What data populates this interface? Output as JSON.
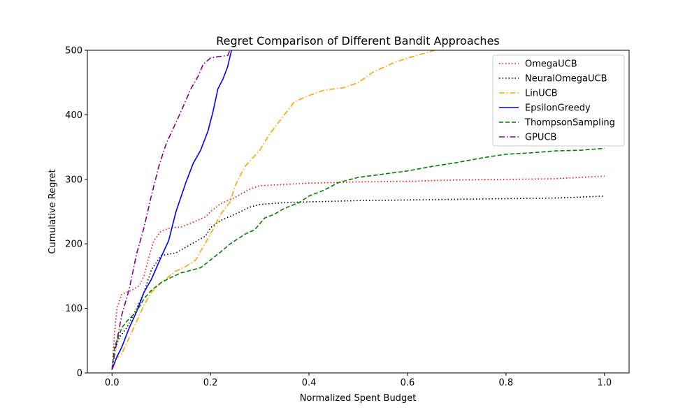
{
  "chart_data": {
    "type": "line",
    "title": "Regret Comparison of Different Bandit Approaches",
    "xlabel": "Normalized Spent Budget",
    "ylabel": "Cumulative Regret",
    "xlim": [
      -0.05,
      1.05
    ],
    "ylim": [
      0,
      500
    ],
    "xticks": [
      0.0,
      0.2,
      0.4,
      0.6,
      0.8,
      1.0
    ],
    "xtick_labels": [
      "0.0",
      "0.2",
      "0.4",
      "0.6",
      "0.8",
      "1.0"
    ],
    "yticks": [
      0,
      100,
      200,
      300,
      400,
      500
    ],
    "ytick_labels": [
      "0",
      "100",
      "200",
      "300",
      "400",
      "500"
    ],
    "grid": false,
    "legend_position": "top-right",
    "series": [
      {
        "name": "OmegaUCB",
        "color": "#ff0000",
        "dash": "dotted",
        "points": [
          [
            0,
            5
          ],
          [
            0.005,
            60
          ],
          [
            0.01,
            100
          ],
          [
            0.02,
            122
          ],
          [
            0.04,
            128
          ],
          [
            0.055,
            135
          ],
          [
            0.065,
            150
          ],
          [
            0.075,
            180
          ],
          [
            0.085,
            205
          ],
          [
            0.1,
            220
          ],
          [
            0.12,
            225
          ],
          [
            0.14,
            226
          ],
          [
            0.16,
            232
          ],
          [
            0.19,
            242
          ],
          [
            0.2,
            250
          ],
          [
            0.22,
            262
          ],
          [
            0.25,
            272
          ],
          [
            0.28,
            285
          ],
          [
            0.3,
            290
          ],
          [
            0.35,
            292
          ],
          [
            0.4,
            294
          ],
          [
            0.5,
            296
          ],
          [
            0.6,
            297
          ],
          [
            0.7,
            299
          ],
          [
            0.8,
            300
          ],
          [
            0.9,
            301
          ],
          [
            1.0,
            305
          ]
        ]
      },
      {
        "name": "NeuralOmegaUCB",
        "color": "#000000",
        "dash": "dotted",
        "points": [
          [
            0,
            5
          ],
          [
            0.005,
            35
          ],
          [
            0.015,
            55
          ],
          [
            0.03,
            70
          ],
          [
            0.05,
            100
          ],
          [
            0.065,
            125
          ],
          [
            0.08,
            160
          ],
          [
            0.1,
            182
          ],
          [
            0.13,
            186
          ],
          [
            0.15,
            195
          ],
          [
            0.19,
            212
          ],
          [
            0.2,
            225
          ],
          [
            0.22,
            236
          ],
          [
            0.25,
            246
          ],
          [
            0.28,
            257
          ],
          [
            0.3,
            261
          ],
          [
            0.35,
            264
          ],
          [
            0.4,
            265
          ],
          [
            0.5,
            267
          ],
          [
            0.6,
            268
          ],
          [
            0.7,
            269
          ],
          [
            0.8,
            270
          ],
          [
            0.9,
            271
          ],
          [
            1.0,
            274
          ]
        ]
      },
      {
        "name": "LinUCB",
        "color": "#ffa500",
        "dash": "dashdot",
        "points": [
          [
            0,
            5
          ],
          [
            0.005,
            20
          ],
          [
            0.02,
            30
          ],
          [
            0.035,
            55
          ],
          [
            0.05,
            80
          ],
          [
            0.065,
            105
          ],
          [
            0.08,
            125
          ],
          [
            0.1,
            140
          ],
          [
            0.13,
            158
          ],
          [
            0.15,
            165
          ],
          [
            0.17,
            175
          ],
          [
            0.2,
            215
          ],
          [
            0.22,
            245
          ],
          [
            0.24,
            265
          ],
          [
            0.25,
            290
          ],
          [
            0.27,
            320
          ],
          [
            0.3,
            345
          ],
          [
            0.32,
            370
          ],
          [
            0.35,
            400
          ],
          [
            0.37,
            420
          ],
          [
            0.4,
            430
          ],
          [
            0.43,
            438
          ],
          [
            0.47,
            442
          ],
          [
            0.5,
            450
          ],
          [
            0.53,
            466
          ],
          [
            0.57,
            480
          ],
          [
            0.6,
            488
          ],
          [
            0.62,
            492
          ],
          [
            0.66,
            501
          ]
        ]
      },
      {
        "name": "EpsilonGreedy",
        "color": "#0000ff",
        "dash": "solid",
        "points": [
          [
            0,
            5
          ],
          [
            0.01,
            25
          ],
          [
            0.02,
            40
          ],
          [
            0.035,
            70
          ],
          [
            0.05,
            95
          ],
          [
            0.065,
            125
          ],
          [
            0.08,
            145
          ],
          [
            0.1,
            180
          ],
          [
            0.115,
            205
          ],
          [
            0.13,
            250
          ],
          [
            0.15,
            295
          ],
          [
            0.165,
            325
          ],
          [
            0.18,
            345
          ],
          [
            0.195,
            375
          ],
          [
            0.205,
            405
          ],
          [
            0.215,
            440
          ],
          [
            0.225,
            455
          ],
          [
            0.235,
            475
          ],
          [
            0.243,
            501
          ]
        ]
      },
      {
        "name": "ThompsonSampling",
        "color": "#008000",
        "dash": "dashed",
        "points": [
          [
            0,
            5
          ],
          [
            0.005,
            40
          ],
          [
            0.02,
            70
          ],
          [
            0.03,
            80
          ],
          [
            0.05,
            95
          ],
          [
            0.065,
            115
          ],
          [
            0.08,
            128
          ],
          [
            0.1,
            140
          ],
          [
            0.12,
            148
          ],
          [
            0.14,
            155
          ],
          [
            0.16,
            159
          ],
          [
            0.18,
            163
          ],
          [
            0.2,
            175
          ],
          [
            0.22,
            187
          ],
          [
            0.24,
            200
          ],
          [
            0.27,
            215
          ],
          [
            0.29,
            222
          ],
          [
            0.31,
            240
          ],
          [
            0.33,
            246
          ],
          [
            0.35,
            255
          ],
          [
            0.38,
            264
          ],
          [
            0.4,
            274
          ],
          [
            0.43,
            283
          ],
          [
            0.46,
            295
          ],
          [
            0.5,
            303
          ],
          [
            0.55,
            308
          ],
          [
            0.6,
            313
          ],
          [
            0.65,
            320
          ],
          [
            0.7,
            326
          ],
          [
            0.75,
            333
          ],
          [
            0.8,
            339
          ],
          [
            0.85,
            341
          ],
          [
            0.9,
            344
          ],
          [
            0.95,
            345
          ],
          [
            1.0,
            348
          ]
        ]
      },
      {
        "name": "GPUCB",
        "color": "#800080",
        "dash": "dashdot",
        "points": [
          [
            0,
            5
          ],
          [
            0.01,
            50
          ],
          [
            0.02,
            90
          ],
          [
            0.035,
            130
          ],
          [
            0.05,
            185
          ],
          [
            0.065,
            225
          ],
          [
            0.08,
            275
          ],
          [
            0.095,
            320
          ],
          [
            0.11,
            355
          ],
          [
            0.125,
            380
          ],
          [
            0.14,
            405
          ],
          [
            0.16,
            440
          ],
          [
            0.175,
            460
          ],
          [
            0.185,
            478
          ],
          [
            0.2,
            488
          ],
          [
            0.215,
            490
          ],
          [
            0.235,
            492
          ],
          [
            0.24,
            501
          ]
        ]
      }
    ]
  }
}
